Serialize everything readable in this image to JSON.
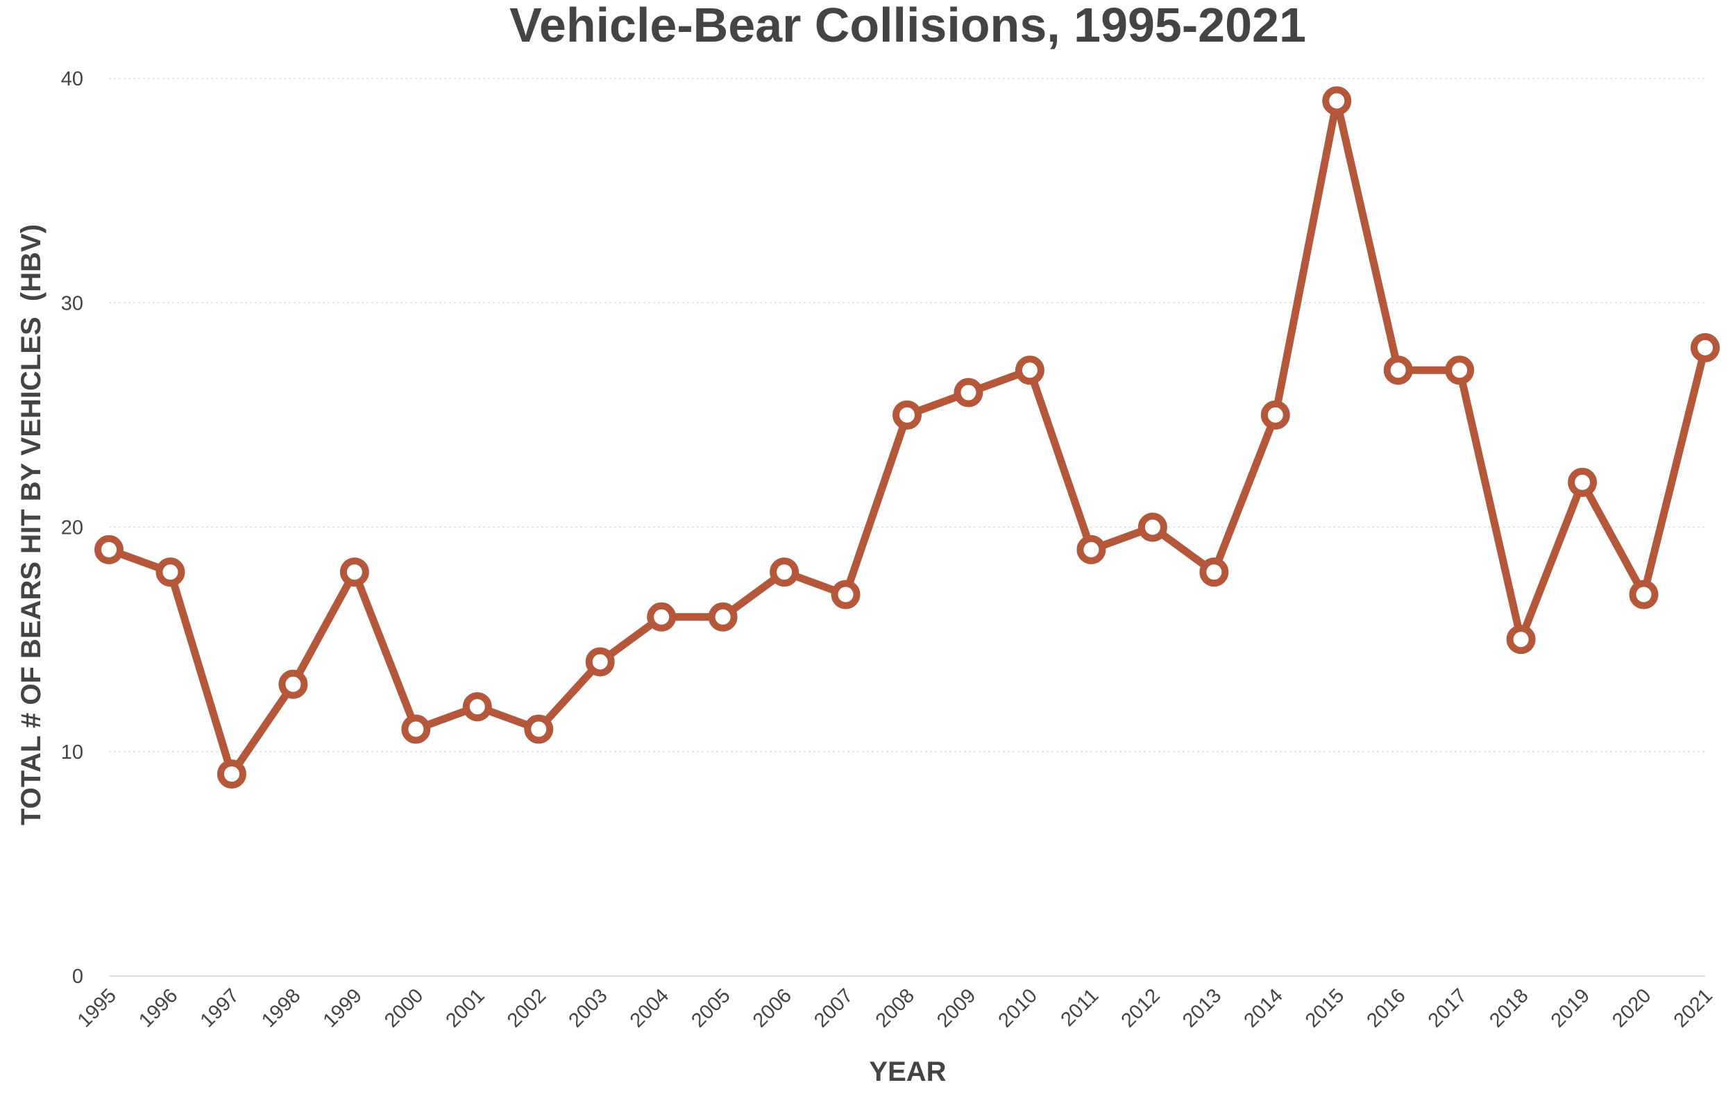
{
  "chart_data": {
    "type": "line",
    "title": "Vehicle-Bear Collisions, 1995-2021",
    "xlabel": "YEAR",
    "ylabel": "TOTAL # OF BEARS HIT BY VEHICLES  (HBV)",
    "x": [
      "1995",
      "1996",
      "1997",
      "1998",
      "1999",
      "2000",
      "2001",
      "2002",
      "2003",
      "2004",
      "2005",
      "2006",
      "2007",
      "2008",
      "2009",
      "2010",
      "2011",
      "2012",
      "2013",
      "2014",
      "2015",
      "2016",
      "2017",
      "2018",
      "2019",
      "2020",
      "2021"
    ],
    "series": [
      {
        "values": [
          19,
          18,
          9,
          13,
          18,
          11,
          12,
          11,
          14,
          16,
          16,
          18,
          17,
          25,
          26,
          27,
          19,
          20,
          18,
          25,
          39,
          27,
          27,
          15,
          22,
          17,
          28
        ],
        "color": "#b5573a"
      }
    ],
    "ylim": [
      0,
      40
    ],
    "yticks": [
      0,
      10,
      20,
      30,
      40
    ],
    "grid": true,
    "legend": "none"
  }
}
